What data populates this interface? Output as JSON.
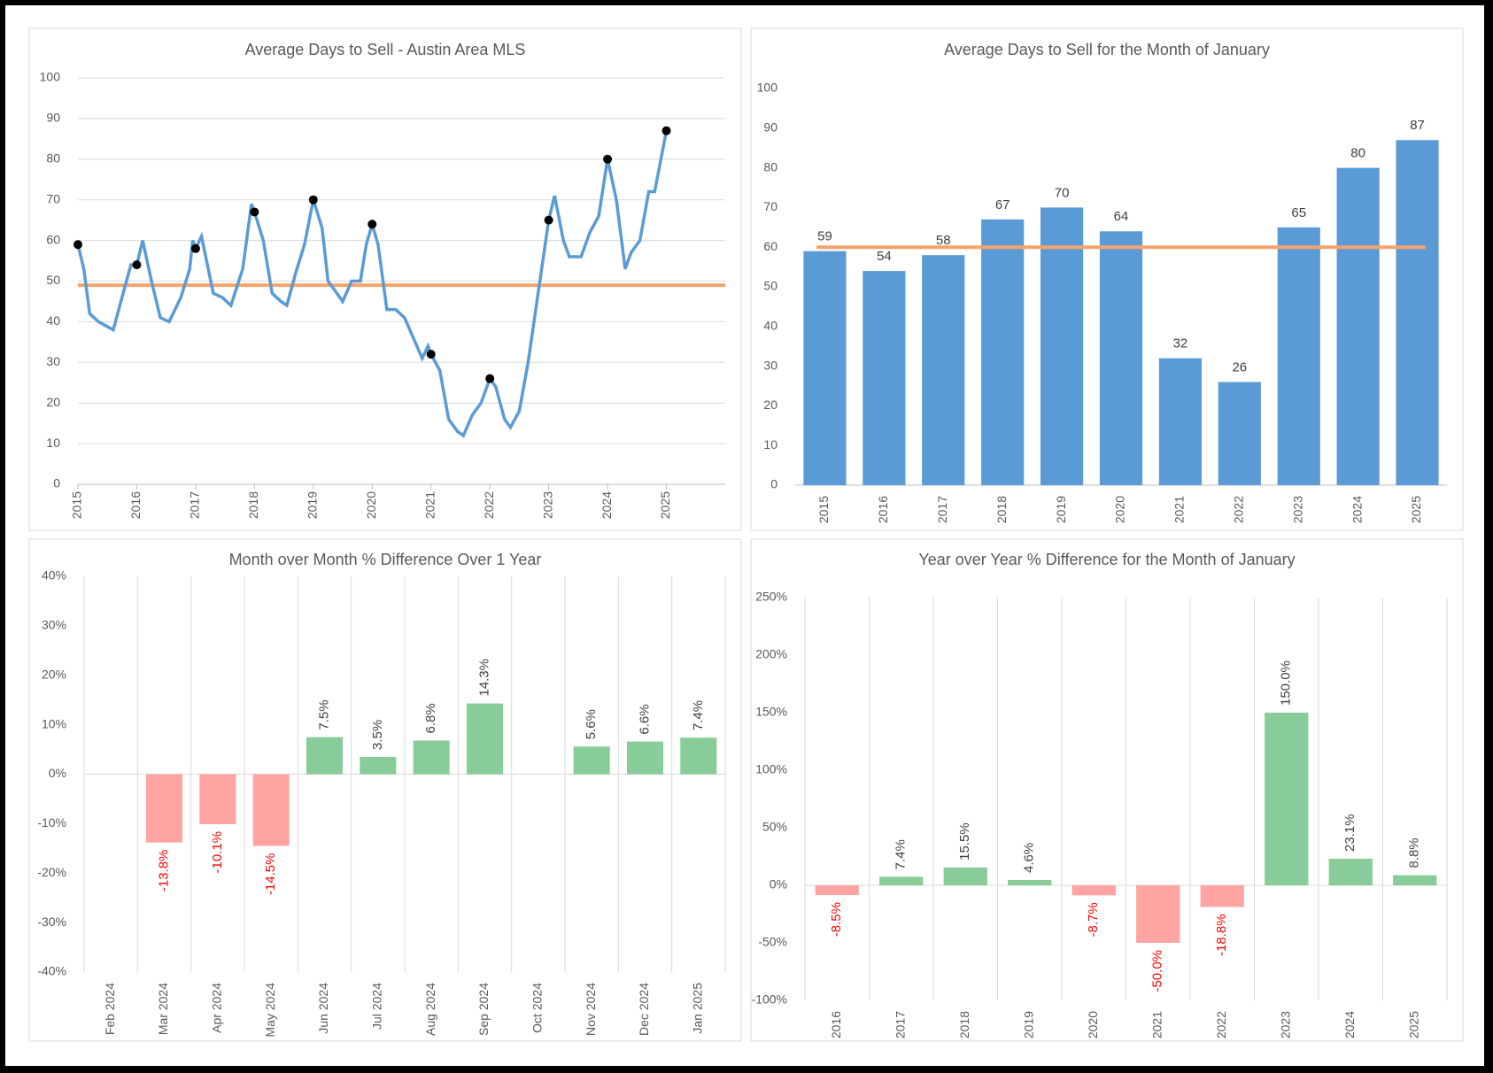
{
  "chart_data": [
    {
      "type": "line",
      "title": "Average Days to Sell - Austin Area MLS",
      "x": [
        2015.0,
        2015.1,
        2015.2,
        2015.35,
        2015.6,
        2015.75,
        2015.9,
        2016.0,
        2016.1,
        2016.25,
        2016.4,
        2016.55,
        2016.75,
        2016.9,
        2016.95,
        2017.0,
        2017.1,
        2017.3,
        2017.45,
        2017.6,
        2017.8,
        2017.95,
        2018.0,
        2018.15,
        2018.3,
        2018.45,
        2018.55,
        2018.7,
        2018.85,
        2019.0,
        2019.15,
        2019.25,
        2019.4,
        2019.5,
        2019.65,
        2019.8,
        2019.9,
        2020.0,
        2020.1,
        2020.25,
        2020.4,
        2020.55,
        2020.7,
        2020.85,
        2020.95,
        2021.0,
        2021.15,
        2021.3,
        2021.45,
        2021.55,
        2021.7,
        2021.85,
        2022.0,
        2022.1,
        2022.25,
        2022.35,
        2022.5,
        2022.65,
        2022.8,
        2023.0,
        2023.1,
        2023.25,
        2023.35,
        2023.55,
        2023.7,
        2023.85,
        2024.0,
        2024.15,
        2024.3,
        2024.4,
        2024.55,
        2024.7,
        2024.8,
        2025.0
      ],
      "values": [
        59,
        53,
        42,
        40,
        38,
        46,
        54,
        54,
        60,
        50,
        41,
        40,
        46,
        53,
        60,
        58,
        61,
        47,
        46,
        44,
        53,
        69,
        67,
        60,
        47,
        45,
        44,
        52,
        59,
        70,
        63,
        50,
        47,
        45,
        50,
        50,
        59,
        64,
        59,
        43,
        43,
        41,
        36,
        31,
        34,
        32,
        28,
        16,
        13,
        12,
        17,
        20,
        26,
        24,
        16,
        14,
        18,
        30,
        45,
        65,
        71,
        60,
        56,
        56,
        62,
        66,
        80,
        70,
        53,
        57,
        60,
        72,
        72,
        87
      ],
      "color": "#5b9bd5",
      "markers": {
        "x": [
          2015,
          2016,
          2017,
          2018,
          2019,
          2020,
          2021,
          2022,
          2023,
          2024,
          2025
        ],
        "values": [
          59,
          54,
          58,
          67,
          70,
          64,
          32,
          26,
          65,
          80,
          87
        ],
        "color": "#000000"
      },
      "average": 49,
      "average_color": "#f4a46a",
      "xlim": [
        2015,
        2026
      ],
      "xticks": [
        2015,
        2016,
        2017,
        2018,
        2019,
        2020,
        2021,
        2022,
        2023,
        2024,
        2025
      ],
      "ylim": [
        0,
        100
      ],
      "yticks": [
        0,
        10,
        20,
        30,
        40,
        50,
        60,
        70,
        80,
        90,
        100
      ],
      "grid": true
    },
    {
      "type": "bar",
      "title": "Average Days to Sell for the Month of January",
      "categories": [
        "2015",
        "2016",
        "2017",
        "2018",
        "2019",
        "2020",
        "2021",
        "2022",
        "2023",
        "2024",
        "2025"
      ],
      "values": [
        59,
        54,
        58,
        67,
        70,
        64,
        32,
        26,
        65,
        80,
        87
      ],
      "color": "#5b9bd5",
      "average": 60,
      "average_color": "#f4a46a",
      "ylim": [
        0,
        100
      ],
      "yticks": [
        0,
        10,
        20,
        30,
        40,
        50,
        60,
        70,
        80,
        90,
        100
      ],
      "grid": false
    },
    {
      "type": "signed-bar",
      "title": "Month over Month % Difference Over 1 Year",
      "categories": [
        "Feb 2024",
        "Mar 2024",
        "Apr 2024",
        "May 2024",
        "Jun 2024",
        "Jul 2024",
        "Aug 2024",
        "Sep 2024",
        "Oct 2024",
        "Nov 2024",
        "Dec 2024",
        "Jan 2025"
      ],
      "values": [
        null,
        -13.8,
        -10.1,
        -14.5,
        7.5,
        3.5,
        6.8,
        14.3,
        null,
        5.6,
        6.6,
        7.4
      ],
      "value_labels": [
        null,
        "-13.8%",
        "-10.1%",
        "-14.5%",
        "7.5%",
        "3.5%",
        "6.8%",
        "14.3%",
        null,
        "5.6%",
        "6.6%",
        "7.4%"
      ],
      "positive_color": "#88cc99",
      "negative_color": "#ffa3a3",
      "negative_label_color": "#ff0000",
      "ylim": [
        -40,
        40
      ],
      "yticks": [
        {
          "value": -40,
          "label": "-40%"
        },
        {
          "value": -30,
          "label": "-30%"
        },
        {
          "value": -20,
          "label": "-20%"
        },
        {
          "value": -10,
          "label": "-10%"
        },
        {
          "value": 0,
          "label": "0%"
        },
        {
          "value": 10,
          "label": "10%"
        },
        {
          "value": 20,
          "label": "20%"
        },
        {
          "value": 30,
          "label": "30%"
        },
        {
          "value": 40,
          "label": "40%"
        }
      ],
      "grid": false
    },
    {
      "type": "signed-bar",
      "title": "Year over Year % Difference for the Month of January",
      "categories": [
        "2016",
        "2017",
        "2018",
        "2019",
        "2020",
        "2021",
        "2022",
        "2023",
        "2024",
        "2025"
      ],
      "values": [
        -8.5,
        7.4,
        15.5,
        4.6,
        -8.7,
        -50.0,
        -18.8,
        150.0,
        23.1,
        8.8
      ],
      "value_labels": [
        "-8.5%",
        "7.4%",
        "15.5%",
        "4.6%",
        "-8.7%",
        "-50.0%",
        "-18.8%",
        "150.0%",
        "23.1%",
        "8.8%"
      ],
      "positive_color": "#88cc99",
      "negative_color": "#ffa3a3",
      "negative_label_color": "#ff0000",
      "ylim": [
        -100,
        250
      ],
      "yticks": [
        {
          "value": -100,
          "label": "-100%"
        },
        {
          "value": -50,
          "label": "-50%"
        },
        {
          "value": 0,
          "label": "0%"
        },
        {
          "value": 50,
          "label": "50%"
        },
        {
          "value": 100,
          "label": "100%"
        },
        {
          "value": 150,
          "label": "150%"
        },
        {
          "value": 200,
          "label": "200%"
        },
        {
          "value": 250,
          "label": "250%"
        }
      ],
      "grid": false
    }
  ]
}
